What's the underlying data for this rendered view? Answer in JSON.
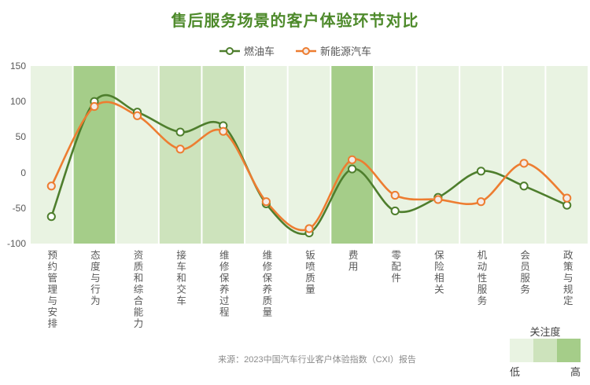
{
  "title": "售后服务场景的客户体验环节对比",
  "legend": {
    "series": [
      {
        "label": "燃油车",
        "color": "#4e7e2d",
        "marker_fill": "#ffffff"
      },
      {
        "label": "新能源汽车",
        "color": "#ed7d31",
        "marker_fill": "#f4ebe8"
      }
    ]
  },
  "chart_data": {
    "type": "line",
    "title": "售后服务场景的客户体验环节对比",
    "categories": [
      "预约管理与安排",
      "态度与行为",
      "资质和综合能力",
      "接车和交车",
      "维修保养过程",
      "维修保养质量",
      "钣喷质量",
      "费用",
      "零配件",
      "保险相关",
      "机动性服务",
      "会员服务",
      "政策与规定"
    ],
    "series": [
      {
        "name": "燃油车",
        "color": "#4e7e2d",
        "marker_fill": "#ffffff",
        "values": [
          -62,
          100,
          85,
          57,
          66,
          -44,
          -85,
          5,
          -54,
          -35,
          2,
          -19,
          -46
        ]
      },
      {
        "name": "新能源汽车",
        "color": "#ed7d31",
        "marker_fill": "#f4ebe8",
        "values": [
          -19,
          93,
          80,
          33,
          58,
          -41,
          -79,
          18,
          -32,
          -38,
          -41,
          13,
          -36
        ]
      }
    ],
    "ylim": [
      -100,
      150
    ],
    "yticks": [
      150,
      100,
      50,
      0,
      -50,
      -100
    ],
    "grid": false,
    "legend_position": "top-center",
    "smooth": true,
    "column_attention": [
      "low",
      "high",
      "low",
      "medium",
      "medium",
      "low",
      "low",
      "high",
      "low",
      "low",
      "low",
      "low",
      "low"
    ],
    "attention_colors": {
      "low": "#e9f3e2",
      "medium": "#cde3bc",
      "high": "#a5cd89"
    }
  },
  "attention_legend": {
    "title": "关注度",
    "low_label": "低",
    "high_label": "高"
  },
  "source": "来源：2023中国汽车行业客户体验指数（CXI）报告"
}
